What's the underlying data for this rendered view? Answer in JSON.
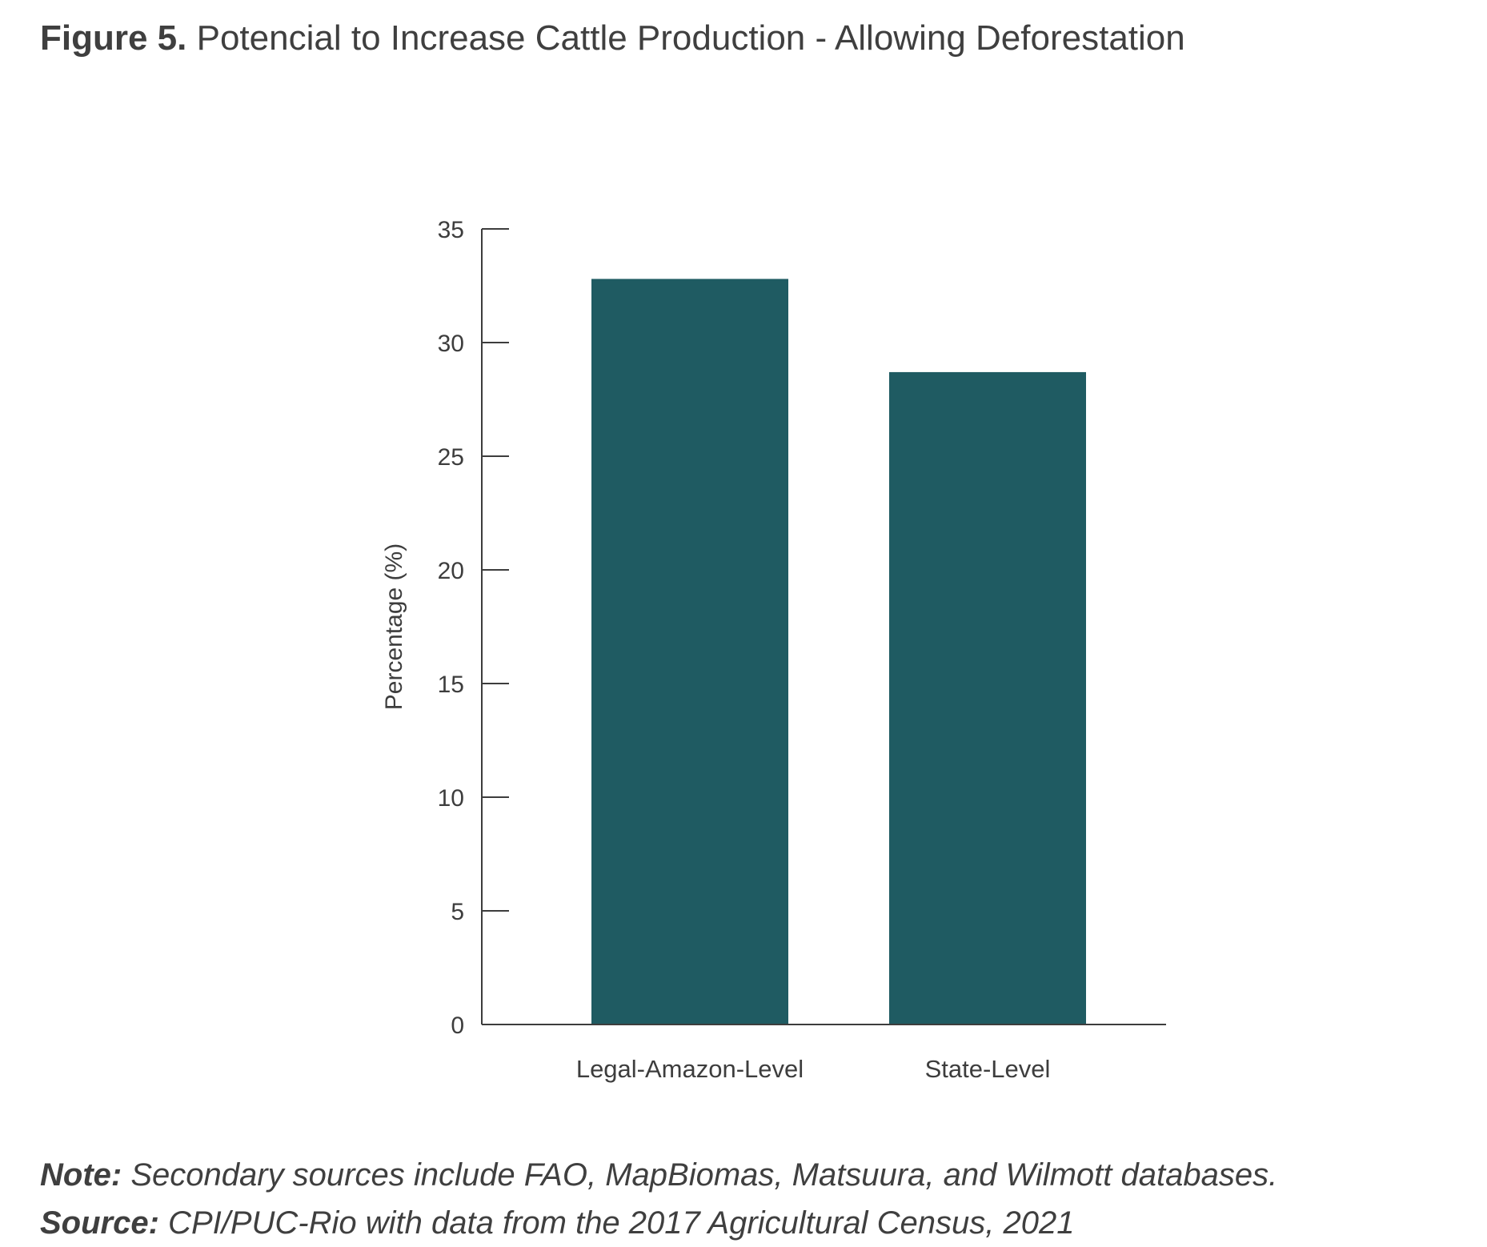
{
  "figure": {
    "label": "Figure 5.",
    "title": "Potencial to Increase Cattle Production - Allowing Deforestation"
  },
  "chart_data": {
    "type": "bar",
    "categories": [
      "Legal-Amazon-Level",
      "State-Level"
    ],
    "values": [
      32.8,
      28.7
    ],
    "ylabel": "Percentage (%)",
    "xlabel": "",
    "ylim": [
      0,
      35
    ],
    "yticks": [
      0,
      5,
      10,
      15,
      20,
      25,
      30,
      35
    ],
    "grid": false,
    "legend": "none",
    "bar_color": "#1f5b62"
  },
  "footer": {
    "note_label": "Note:",
    "note_text": " Secondary sources include FAO, MapBiomas, Matsuura, and Wilmott databases.",
    "source_label": "Source:",
    "source_text": " CPI/PUC-Rio with data from the 2017 Agricultural Census, 2021"
  }
}
